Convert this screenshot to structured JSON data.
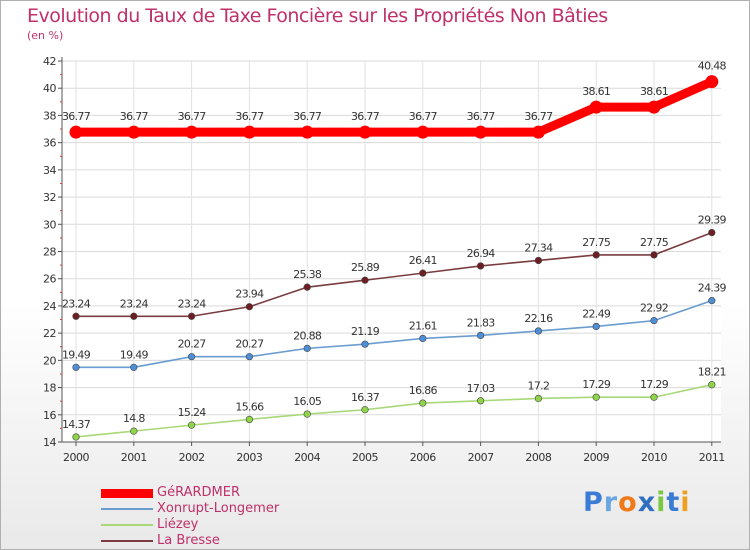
{
  "title": "Evolution du Taux de Taxe Foncière sur les Propriétés Non Bâties",
  "unit": "(en %)",
  "logo": {
    "text": "Proxiti",
    "letters": [
      "P",
      "r",
      "o",
      "x",
      "i",
      "t",
      "i"
    ],
    "colors": [
      "#3a7bd5",
      "#6aa7e0",
      "#f07a1a",
      "#2e6fc4",
      "#7ac943",
      "#3a7bd5",
      "#f0a020"
    ]
  },
  "chart_data": {
    "type": "line",
    "title": "Evolution du Taux de Taxe Foncière sur les Propriétés Non Bâties",
    "ylabel": "(en %)",
    "xlabel": "",
    "x": [
      "2000",
      "2001",
      "2002",
      "2003",
      "2004",
      "2005",
      "2006",
      "2007",
      "2008",
      "2009",
      "2010",
      "2011"
    ],
    "ylim": [
      14,
      42
    ],
    "yticks": [
      14,
      16,
      18,
      20,
      22,
      24,
      26,
      28,
      30,
      32,
      34,
      36,
      38,
      40,
      42
    ],
    "grid": true,
    "legend_position": "bottom-left",
    "series": [
      {
        "name": "GéRARDMER",
        "line_color": "#ff0000",
        "marker_color": "#ff0000",
        "emphasis": true,
        "values": [
          36.77,
          36.77,
          36.77,
          36.77,
          36.77,
          36.77,
          36.77,
          36.77,
          36.77,
          38.61,
          38.61,
          40.48
        ],
        "labels": [
          "36.77",
          "36.77",
          "36.77",
          "36.77",
          "36.77",
          "36.77",
          "36.77",
          "36.77",
          "36.77",
          "38.61",
          "38.61",
          "40.48"
        ]
      },
      {
        "name": "Xonrupt-Longemer",
        "line_color": "#6a9cd0",
        "marker_color": "#4e8ed6",
        "emphasis": false,
        "values": [
          19.49,
          19.49,
          20.27,
          20.27,
          20.88,
          21.19,
          21.61,
          21.83,
          22.16,
          22.49,
          22.92,
          24.39
        ],
        "labels": [
          "19.49",
          "19.49",
          "20.27",
          "20.27",
          "20.88",
          "21.19",
          "21.61",
          "21.83",
          "22.16",
          "22.49",
          "22.92",
          "24.39"
        ]
      },
      {
        "name": "Liézey",
        "line_color": "#a8d878",
        "marker_color": "#8fd44a",
        "emphasis": false,
        "values": [
          14.37,
          14.8,
          15.24,
          15.66,
          16.05,
          16.37,
          16.86,
          17.03,
          17.2,
          17.29,
          17.29,
          18.21
        ],
        "labels": [
          "14.37",
          "14.8",
          "15.24",
          "15.66",
          "16.05",
          "16.37",
          "16.86",
          "17.03",
          "17.2",
          "17.29",
          "17.29",
          "18.21"
        ]
      },
      {
        "name": "La Bresse",
        "line_color": "#7a3c40",
        "marker_color": "#6e1e22",
        "emphasis": false,
        "values": [
          23.24,
          23.24,
          23.24,
          23.94,
          25.38,
          25.89,
          26.41,
          26.94,
          27.34,
          27.75,
          27.75,
          29.39
        ],
        "labels": [
          "23.24",
          "23.24",
          "23.24",
          "23.94",
          "25.38",
          "25.89",
          "26.41",
          "26.94",
          "27.34",
          "27.75",
          "27.75",
          "29.39"
        ]
      }
    ]
  }
}
